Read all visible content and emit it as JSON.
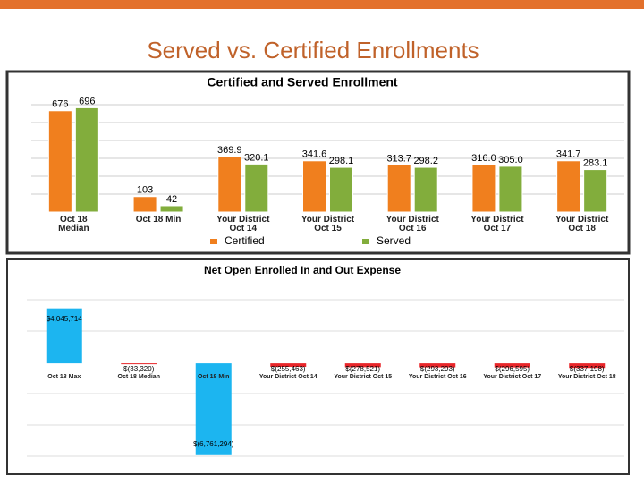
{
  "title": "Served vs. Certified Enrollments",
  "chart_data": [
    {
      "type": "bar",
      "title": "Certified and Served Enrollment",
      "categories": [
        "Oct 18 Median",
        "Oct 18 Min",
        "Your District Oct 14",
        "Your District Oct 15",
        "Your District Oct 16",
        "Your District Oct 17",
        "Your District Oct 18"
      ],
      "series": [
        {
          "name": "Certified",
          "color": "#f07f1e",
          "values": [
            676,
            103,
            369.9,
            341.6,
            313.7,
            316.0,
            341.7
          ],
          "value_labels": [
            "676",
            "103",
            "369.9",
            "341.6",
            "313.7",
            "316.0",
            "341.7"
          ]
        },
        {
          "name": "Served",
          "color": "#82ad3c",
          "values": [
            696,
            42,
            320.1,
            298.1,
            298.2,
            305.0,
            283.1
          ],
          "value_labels": [
            "696",
            "42",
            "320.1",
            "298.1",
            "298.2",
            "305.0",
            "283.1"
          ]
        }
      ],
      "ylim": [
        0,
        800
      ],
      "legend": "bottom"
    },
    {
      "type": "bar",
      "title": "Net Open Enrolled In and Out Expense",
      "categories": [
        "Oct 18 Max",
        "Oct 18 Median",
        "Oct 18 Min",
        "Your District Oct 14",
        "Your District Oct 15",
        "Your District Oct 16",
        "Your District Oct 17",
        "Your District Oct 18"
      ],
      "values": [
        4045714,
        -33320,
        -6761294,
        -255463,
        -278521,
        -293293,
        -296595,
        -337198
      ],
      "value_labels": [
        "$4,045,714",
        "$(33,320)",
        "$(6,761,294)",
        "$(255,463)",
        "$(278,521)",
        "$(293,293)",
        "$(296,595)",
        "$(337,198)"
      ],
      "colors": [
        "#1cb5f0",
        "#e8262a",
        "#1cb5f0",
        "#e8262a",
        "#e8262a",
        "#e8262a",
        "#e8262a",
        "#e8262a"
      ],
      "ylim": [
        -7500000,
        6000000
      ]
    }
  ]
}
